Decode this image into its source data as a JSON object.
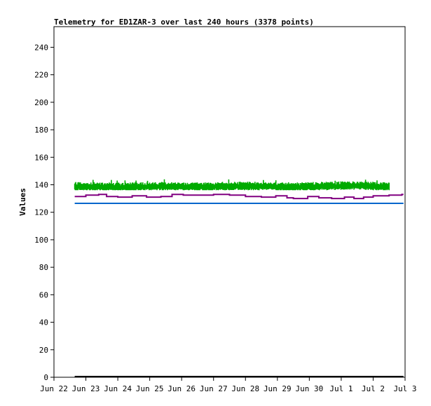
{
  "chart_data": {
    "type": "line",
    "title": "Telemetry for ED1ZAR-3 over last 240 hours (3378 points)",
    "ylabel": "Values",
    "xlabel": "",
    "ylim": [
      0,
      255
    ],
    "y_ticks": [
      0,
      20,
      40,
      60,
      80,
      100,
      120,
      140,
      160,
      180,
      200,
      220,
      240
    ],
    "x_ticks": [
      "Jun 22",
      "Jun 23",
      "Jun 24",
      "Jun 25",
      "Jun 26",
      "Jun 27",
      "Jun 28",
      "Jun 29",
      "Jun 30",
      "Jul 1",
      "Jul 2",
      "Jul 3"
    ],
    "x_range_days": [
      0,
      11
    ],
    "series": [
      {
        "color": "#00aa00",
        "style": "noisy-band",
        "x_days": [
          0.65,
          1.5,
          2.5,
          3.5,
          4.5,
          5.5,
          6.5,
          7.5,
          8.5,
          9.5,
          10.5
        ],
        "values": [
          139,
          138.5,
          138.5,
          139,
          138.5,
          139,
          139,
          138.5,
          139,
          139.5,
          138.5
        ],
        "band_min": 136,
        "band_max": 144
      },
      {
        "color": "#800080",
        "style": "step",
        "x_days": [
          0.65,
          1.0,
          1.4,
          1.65,
          2.0,
          2.45,
          2.9,
          3.35,
          3.7,
          4.05,
          4.6,
          5.0,
          5.5,
          6.0,
          6.5,
          6.95,
          7.3,
          7.5,
          7.95,
          8.3,
          8.7,
          9.1,
          9.4,
          9.7,
          10.0,
          10.5,
          10.9
        ],
        "values": [
          131.5,
          132.5,
          133,
          131.5,
          131,
          132,
          131,
          131.5,
          133,
          132.5,
          132.5,
          133,
          132.5,
          131.5,
          131,
          132,
          130.5,
          130,
          131.5,
          130.5,
          130,
          131,
          130,
          131,
          132,
          132.5,
          133
        ]
      },
      {
        "color": "#0066cc",
        "style": "line",
        "x_days": [
          0.65,
          10.95
        ],
        "values": [
          126.5,
          126.5
        ]
      },
      {
        "color": "#000000",
        "style": "line",
        "x_days": [
          0.65,
          10.95
        ],
        "values": [
          0.5,
          0.5
        ]
      }
    ],
    "grid": false,
    "legend": "none"
  }
}
